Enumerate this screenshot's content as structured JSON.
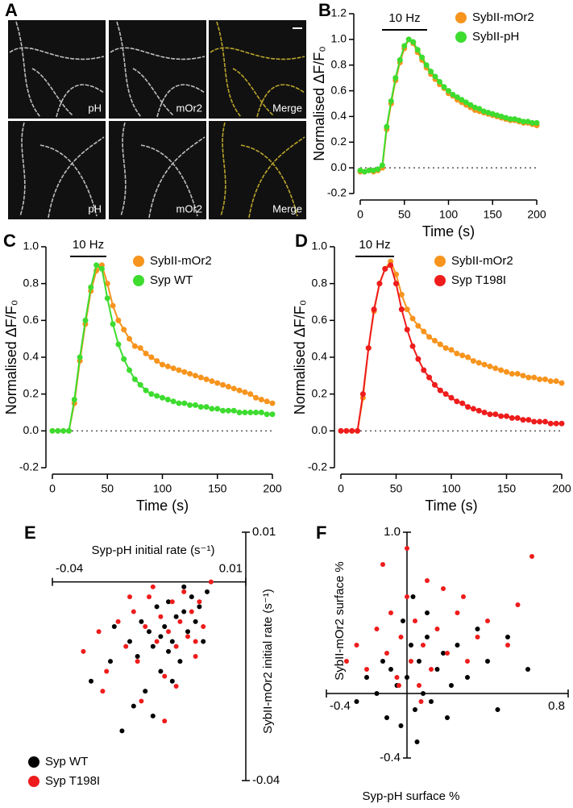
{
  "panel_a": {
    "label": "A",
    "images": [
      [
        "pH",
        "mOr2",
        "Merge"
      ],
      [
        "pH",
        "mOr2",
        "Merge"
      ]
    ]
  },
  "chart_data": [
    {
      "type": "line",
      "panel_label": "B",
      "annotation": "10 Hz",
      "x_label": "Time (s)",
      "y_label": "Normalised ΔF/F₀",
      "legend": "upper right",
      "x": [
        0,
        5,
        10,
        15,
        20,
        25,
        30,
        35,
        40,
        45,
        50,
        55,
        60,
        65,
        70,
        75,
        80,
        85,
        90,
        95,
        100,
        105,
        110,
        115,
        120,
        125,
        130,
        135,
        140,
        145,
        150,
        155,
        160,
        165,
        170,
        175,
        180,
        185,
        190,
        195,
        200
      ],
      "xlim": [
        0,
        200
      ],
      "xticks": [
        0,
        50,
        100,
        150,
        200
      ],
      "ylim": [
        -0.2,
        1.2
      ],
      "yticks": [
        -0.2,
        {
          "value": 0,
          "label": "0.0"
        },
        0.2,
        0.4,
        0.6,
        0.8,
        {
          "value": 1,
          "label": "1.0"
        },
        1.2
      ],
      "series": [
        {
          "name": "SybII-mOr2",
          "color": "#f7941d",
          "values": [
            -0.03,
            -0.03,
            -0.02,
            -0.03,
            -0.02,
            0.0,
            0.3,
            0.5,
            0.68,
            0.82,
            0.93,
            1.0,
            0.97,
            0.9,
            0.84,
            0.78,
            0.73,
            0.69,
            0.65,
            0.62,
            0.58,
            0.56,
            0.53,
            0.51,
            0.49,
            0.47,
            0.45,
            0.44,
            0.43,
            0.42,
            0.41,
            0.4,
            0.39,
            0.38,
            0.37,
            0.37,
            0.36,
            0.35,
            0.35,
            0.34,
            0.33
          ]
        },
        {
          "name": "SybII-pH",
          "color": "#3ddc2f",
          "values": [
            -0.02,
            -0.03,
            -0.02,
            -0.02,
            -0.01,
            0.02,
            0.32,
            0.52,
            0.7,
            0.84,
            0.95,
            1.0,
            0.98,
            0.92,
            0.86,
            0.8,
            0.75,
            0.71,
            0.67,
            0.63,
            0.6,
            0.57,
            0.55,
            0.53,
            0.51,
            0.49,
            0.47,
            0.46,
            0.44,
            0.43,
            0.42,
            0.41,
            0.4,
            0.39,
            0.38,
            0.38,
            0.37,
            0.36,
            0.36,
            0.35,
            0.35
          ]
        }
      ]
    },
    {
      "type": "line",
      "panel_label": "C",
      "annotation": "10 Hz",
      "x_label": "Time (s)",
      "y_label": "Normalised ΔF/F₀",
      "legend": "upper right",
      "x": [
        0,
        5,
        10,
        15,
        20,
        25,
        30,
        35,
        40,
        45,
        50,
        55,
        60,
        65,
        70,
        75,
        80,
        85,
        90,
        95,
        100,
        105,
        110,
        115,
        120,
        125,
        130,
        135,
        140,
        145,
        150,
        155,
        160,
        165,
        170,
        175,
        180,
        185,
        190,
        195,
        200
      ],
      "xlim": [
        0,
        200
      ],
      "xticks": [
        0,
        50,
        100,
        150,
        200
      ],
      "ylim": [
        -0.2,
        1.0
      ],
      "yticks": [
        -0.2,
        {
          "value": 0,
          "label": "0.0"
        },
        0.2,
        0.4,
        0.6,
        0.8,
        {
          "value": 1,
          "label": "1.0"
        }
      ],
      "series": [
        {
          "name": "SybII-mOr2",
          "color": "#f7941d",
          "values": [
            0,
            0,
            0,
            0,
            0.15,
            0.38,
            0.58,
            0.76,
            0.87,
            0.9,
            0.8,
            0.68,
            0.6,
            0.55,
            0.5,
            0.46,
            0.45,
            0.42,
            0.4,
            0.38,
            0.36,
            0.35,
            0.34,
            0.33,
            0.32,
            0.31,
            0.3,
            0.29,
            0.28,
            0.27,
            0.26,
            0.25,
            0.24,
            0.23,
            0.22,
            0.21,
            0.2,
            0.18,
            0.17,
            0.16,
            0.15
          ]
        },
        {
          "name": "Syp WT",
          "color": "#3ddc2f",
          "values": [
            0,
            0,
            0,
            0,
            0.17,
            0.4,
            0.6,
            0.78,
            0.9,
            0.88,
            0.72,
            0.58,
            0.47,
            0.39,
            0.33,
            0.28,
            0.25,
            0.22,
            0.2,
            0.19,
            0.18,
            0.17,
            0.16,
            0.15,
            0.15,
            0.14,
            0.14,
            0.13,
            0.13,
            0.12,
            0.12,
            0.11,
            0.11,
            0.11,
            0.1,
            0.1,
            0.1,
            0.1,
            0.1,
            0.09,
            0.09
          ]
        }
      ]
    },
    {
      "type": "line",
      "panel_label": "D",
      "annotation": "10 Hz",
      "x_label": "Time (s)",
      "y_label": "Normalised ΔF/F₀",
      "legend": "upper right",
      "x": [
        0,
        5,
        10,
        15,
        20,
        25,
        30,
        35,
        40,
        45,
        50,
        55,
        60,
        65,
        70,
        75,
        80,
        85,
        90,
        95,
        100,
        105,
        110,
        115,
        120,
        125,
        130,
        135,
        140,
        145,
        150,
        155,
        160,
        165,
        170,
        175,
        180,
        185,
        190,
        195,
        200
      ],
      "xlim": [
        0,
        200
      ],
      "xticks": [
        0,
        50,
        100,
        150,
        200
      ],
      "ylim": [
        -0.2,
        1.0
      ],
      "yticks": [
        -0.2,
        {
          "value": 0,
          "label": "0.0"
        },
        0.2,
        0.4,
        0.6,
        0.8,
        {
          "value": 1,
          "label": "1.0"
        }
      ],
      "series": [
        {
          "name": "SybII-mOr2",
          "color": "#f7941d",
          "values": [
            0,
            0,
            0,
            0,
            0.18,
            0.45,
            0.65,
            0.8,
            0.88,
            0.92,
            0.85,
            0.74,
            0.66,
            0.61,
            0.57,
            0.54,
            0.51,
            0.49,
            0.47,
            0.45,
            0.44,
            0.42,
            0.41,
            0.4,
            0.38,
            0.37,
            0.36,
            0.35,
            0.34,
            0.33,
            0.32,
            0.31,
            0.31,
            0.3,
            0.29,
            0.29,
            0.28,
            0.28,
            0.27,
            0.27,
            0.26
          ]
        },
        {
          "name": "Syp T198I",
          "color": "#ee1c1c",
          "values": [
            0,
            0,
            0,
            0,
            0.2,
            0.45,
            0.66,
            0.8,
            0.88,
            0.9,
            0.8,
            0.66,
            0.55,
            0.46,
            0.39,
            0.33,
            0.29,
            0.25,
            0.22,
            0.2,
            0.18,
            0.16,
            0.15,
            0.13,
            0.12,
            0.11,
            0.1,
            0.09,
            0.09,
            0.08,
            0.08,
            0.07,
            0.07,
            0.06,
            0.06,
            0.05,
            0.05,
            0.05,
            0.04,
            0.04,
            0.04
          ]
        }
      ]
    },
    {
      "type": "scatter",
      "panel_label": "E",
      "x_label": "Syp-pH initial rate (s⁻¹)",
      "y_label": "SybII-mOr2 initial rate (s⁻¹)",
      "legend": "lower left",
      "xlim": [
        -0.04,
        0.01
      ],
      "xticks": [
        -0.04,
        0.01
      ],
      "ylim": [
        -0.04,
        0.01
      ],
      "yticks": [
        -0.04,
        0.01
      ],
      "series": [
        {
          "name": "Syp WT",
          "color": "#000000",
          "x": [
            -0.03,
            -0.025,
            -0.022,
            -0.02,
            -0.018,
            -0.017,
            -0.016,
            -0.015,
            -0.014,
            -0.013,
            -0.012,
            -0.012,
            -0.011,
            -0.01,
            -0.01,
            -0.009,
            -0.008,
            -0.007,
            -0.006,
            -0.005,
            -0.004,
            -0.003,
            -0.002,
            -0.001,
            0,
            -0.019,
            -0.014,
            -0.009,
            -0.024,
            -0.006
          ],
          "values": [
            -0.02,
            -0.016,
            -0.03,
            -0.012,
            -0.015,
            -0.008,
            -0.022,
            -0.01,
            -0.013,
            -0.005,
            -0.011,
            -0.018,
            -0.009,
            -0.014,
            -0.004,
            -0.012,
            -0.007,
            -0.016,
            -0.006,
            -0.01,
            -0.003,
            -0.008,
            -0.005,
            -0.012,
            -0.002,
            -0.025,
            -0.027,
            -0.02,
            -0.009,
            -0.001
          ]
        },
        {
          "name": "Syp T198I",
          "color": "#ee1c1c",
          "x": [
            -0.032,
            -0.028,
            -0.026,
            -0.023,
            -0.021,
            -0.019,
            -0.018,
            -0.016,
            -0.015,
            -0.013,
            -0.012,
            -0.011,
            -0.01,
            -0.009,
            -0.008,
            -0.007,
            -0.006,
            -0.005,
            -0.004,
            -0.003,
            -0.002,
            -0.001,
            0.001,
            -0.017,
            -0.011,
            -0.02,
            -0.008,
            -0.014,
            -0.003,
            -0.027
          ],
          "values": [
            -0.014,
            -0.01,
            -0.018,
            -0.008,
            -0.013,
            -0.006,
            -0.016,
            -0.009,
            -0.003,
            -0.012,
            -0.007,
            -0.019,
            -0.01,
            -0.004,
            -0.013,
            -0.008,
            -0.002,
            -0.011,
            -0.006,
            -0.015,
            -0.004,
            -0.009,
            0,
            -0.024,
            -0.028,
            -0.003,
            -0.021,
            -0.001,
            -0.012,
            -0.022
          ]
        }
      ]
    },
    {
      "type": "scatter",
      "panel_label": "F",
      "x_label": "Syp-pH surface %",
      "y_label": "SybII-mOr2 surface %",
      "xlim": [
        -0.4,
        0.8
      ],
      "xticks": [
        -0.4,
        0.8
      ],
      "ylim": [
        -0.4,
        1.0
      ],
      "yticks": [
        -0.4,
        {
          "value": 1,
          "label": "1.0"
        }
      ],
      "series": [
        {
          "name": "Syp WT",
          "color": "#000000",
          "x": [
            -0.25,
            -0.2,
            -0.15,
            -0.12,
            -0.1,
            -0.08,
            -0.05,
            -0.03,
            0,
            0.02,
            0.04,
            0.06,
            0.08,
            0.1,
            0.12,
            0.15,
            0.18,
            0.2,
            0.25,
            0.3,
            0.35,
            0.4,
            0.5,
            0.6,
            0.05,
            -0.02,
            0.1,
            0.22,
            0.03,
            0.45
          ],
          "values": [
            -0.05,
            0.1,
            0,
            0.2,
            -0.15,
            0.15,
            0.05,
            -0.2,
            0.1,
            0.3,
            -0.1,
            0.2,
            0,
            0.35,
            -0.05,
            0.15,
            0.25,
            -0.15,
            0.3,
            0.1,
            0.4,
            0.2,
            0.35,
            0.15,
            -0.3,
            0.45,
            0.5,
            0.05,
            0.6,
            -0.1
          ]
        },
        {
          "name": "Syp T198I",
          "color": "#ee1c1c",
          "x": [
            -0.3,
            -0.25,
            -0.2,
            -0.15,
            -0.1,
            -0.08,
            -0.05,
            -0.03,
            0,
            0.02,
            0.04,
            0.06,
            0.08,
            0.1,
            0.12,
            0.15,
            0.2,
            0.25,
            0.3,
            0.35,
            0.4,
            0.5,
            0.55,
            -0.12,
            0,
            0.07,
            0.18,
            -0.04,
            0.28,
            0.62
          ],
          "values": [
            0.2,
            0.3,
            0.15,
            0.4,
            0.25,
            0.5,
            0.1,
            0.35,
            0.6,
            0.2,
            0.45,
            0.05,
            0.3,
            0.7,
            0.15,
            0.4,
            0.25,
            0.5,
            0.2,
            0.35,
            0.45,
            0.3,
            0.55,
            0.8,
            0.9,
            -0.05,
            0.65,
            0.05,
            0.6,
            0.85
          ]
        }
      ]
    }
  ]
}
